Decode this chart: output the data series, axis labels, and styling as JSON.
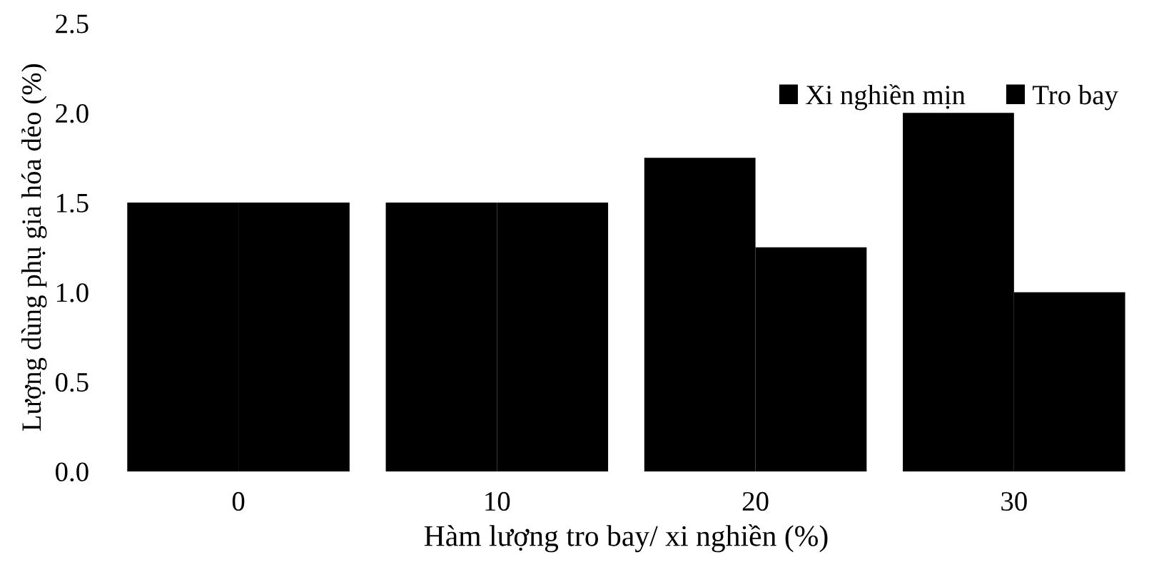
{
  "chart_data": {
    "type": "bar",
    "xlabel": "Hàm lượng tro bay/ xi nghiền (%)",
    "ylabel": "Lượng dùng phụ gia hóa dẻo (%)",
    "categories": [
      "0",
      "10",
      "20",
      "30"
    ],
    "series": [
      {
        "name": "Xi nghiền mịn",
        "color": "#000000",
        "values": [
          1.5,
          1.5,
          1.75,
          2.0
        ]
      },
      {
        "name": "Tro bay",
        "color": "#000000",
        "values": [
          1.5,
          1.5,
          1.25,
          1.0
        ]
      }
    ],
    "ylim": [
      0,
      2.5
    ],
    "yticks": [
      {
        "value": 0,
        "label": "0.0"
      },
      {
        "value": 0.5,
        "label": "0.5"
      },
      {
        "value": 1.0,
        "label": "1.0"
      },
      {
        "value": 1.5,
        "label": "1.5"
      },
      {
        "value": 2.0,
        "label": "2.0"
      },
      {
        "value": 2.5,
        "label": "2.5"
      }
    ],
    "grid": false,
    "legend": "top right"
  }
}
